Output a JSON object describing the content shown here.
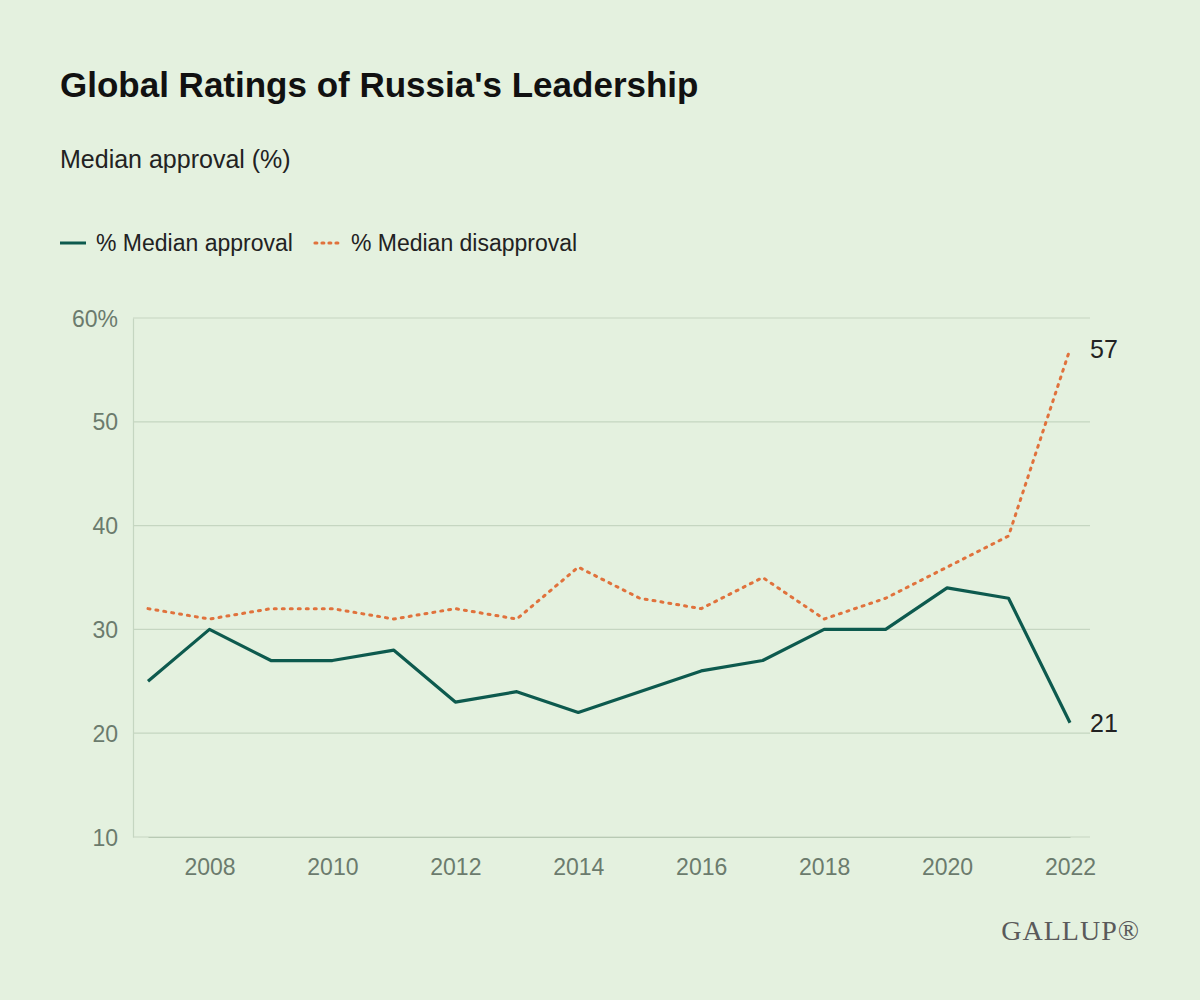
{
  "chart_data": {
    "type": "line",
    "title": "Global Ratings of Russia's Leadership",
    "subtitle": "Median approval (%)",
    "x": [
      2007,
      2008,
      2009,
      2010,
      2011,
      2012,
      2013,
      2014,
      2015,
      2016,
      2017,
      2018,
      2019,
      2020,
      2021,
      2022
    ],
    "series": [
      {
        "name": "% Median approval",
        "color": "#0d5a4e",
        "line_style": "solid",
        "values": [
          25,
          30,
          27,
          27,
          28,
          23,
          24,
          22,
          24,
          26,
          27,
          30,
          30,
          34,
          33,
          21
        ]
      },
      {
        "name": "% Median disapproval",
        "color": "#e0723c",
        "line_style": "dotted",
        "values": [
          32,
          31,
          32,
          32,
          31,
          32,
          31,
          36,
          33,
          32,
          35,
          31,
          33,
          36,
          39,
          57
        ]
      }
    ],
    "xlim": [
      2007,
      2022
    ],
    "xticks": [
      2008,
      2010,
      2012,
      2014,
      2016,
      2018,
      2020,
      2022
    ],
    "ylim": [
      10,
      60
    ],
    "yticks": [
      10,
      20,
      30,
      40,
      50,
      {
        "value": 60,
        "label": "60%"
      }
    ],
    "grid": true,
    "legend": "top-left",
    "annotations": [
      {
        "text": "57",
        "x": 2022,
        "y": 57
      },
      {
        "text": "21",
        "x": 2022,
        "y": 21
      }
    ],
    "source": "GALLUP®"
  }
}
